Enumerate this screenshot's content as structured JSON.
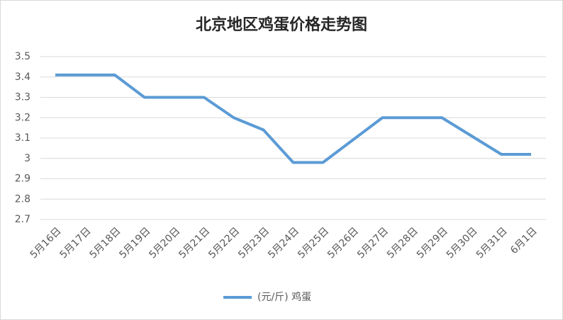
{
  "chart_data": {
    "type": "line",
    "title": "北京地区鸡蛋价格走势图",
    "categories": [
      "5月16日",
      "5月17日",
      "5月18日",
      "5月19日",
      "5月20日",
      "5月21日",
      "5月22日",
      "5月23日",
      "5月24日",
      "5月25日",
      "5月26日",
      "5月27日",
      "5月28日",
      "5月29日",
      "5月30日",
      "5月31日",
      "6月1日"
    ],
    "series": [
      {
        "name": "(元/斤) 鸡蛋",
        "color": "#5b9bd5",
        "values": [
          3.41,
          3.41,
          3.41,
          3.3,
          3.3,
          3.3,
          3.2,
          3.14,
          2.98,
          2.98,
          3.09,
          3.2,
          3.2,
          3.2,
          3.11,
          3.02,
          3.02
        ]
      }
    ],
    "ylim": [
      2.7,
      3.5
    ],
    "yticks": [
      2.7,
      2.8,
      2.9,
      3,
      3.1,
      3.2,
      3.3,
      3.4,
      3.5
    ],
    "grid": true,
    "legend": "bottom"
  }
}
